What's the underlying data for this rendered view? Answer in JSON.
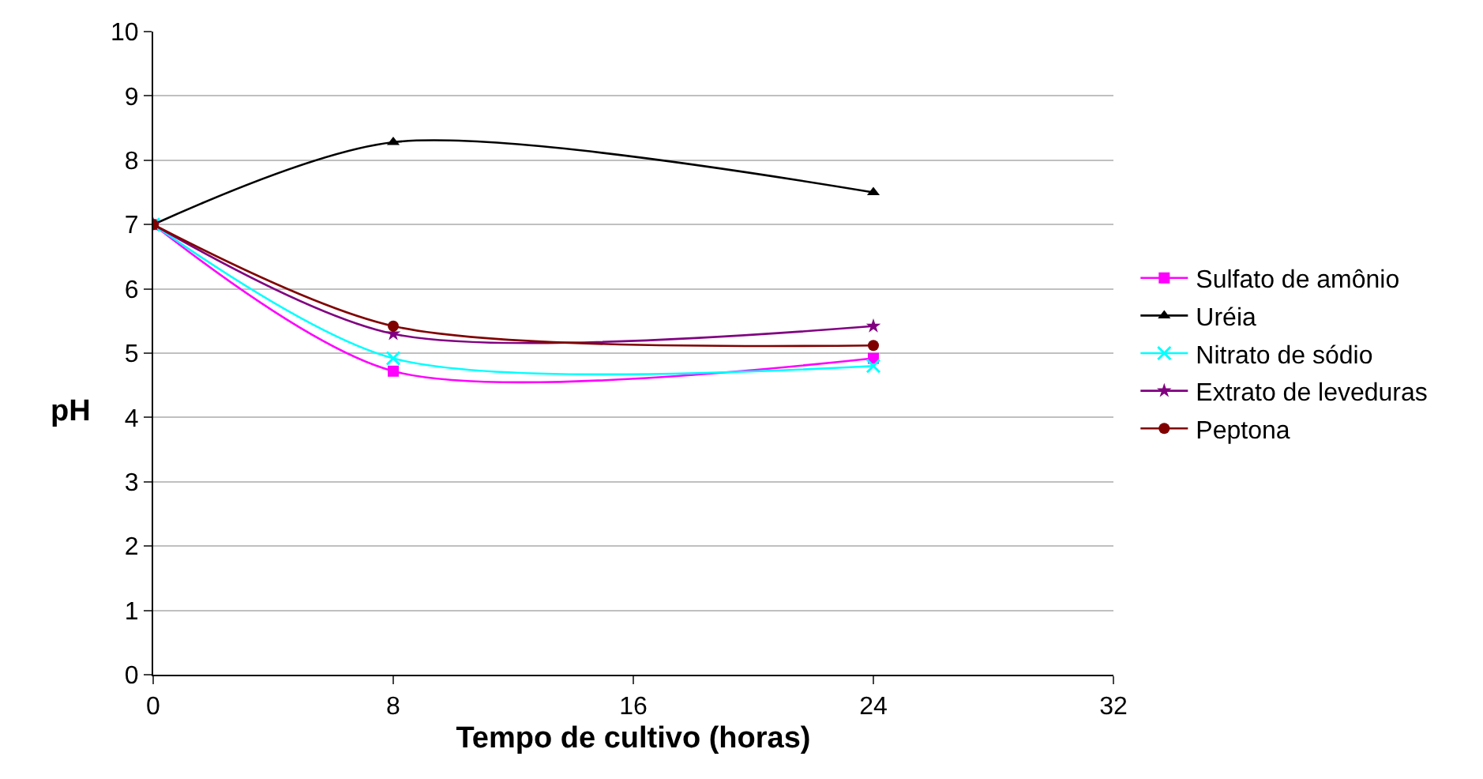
{
  "chart_data": {
    "type": "line",
    "xlabel": "Tempo de cultivo (horas)",
    "ylabel": "pH",
    "x": [
      0,
      8,
      24
    ],
    "series": [
      {
        "name": "Sulfato de amônio",
        "color": "#ff00ff",
        "marker": "square",
        "values": [
          7,
          4.72,
          4.92
        ]
      },
      {
        "name": "Uréia",
        "color": "#000000",
        "marker": "triangle",
        "values": [
          7,
          8.28,
          7.5
        ]
      },
      {
        "name": "Nitrato de sódio",
        "color": "#00ffff",
        "marker": "cross",
        "values": [
          7,
          4.92,
          4.8
        ]
      },
      {
        "name": "Extrato de leveduras",
        "color": "#800080",
        "marker": "star",
        "values": [
          7,
          5.3,
          5.42
        ]
      },
      {
        "name": "Peptona",
        "color": "#800000",
        "marker": "circle",
        "values": [
          7,
          5.42,
          5.12
        ]
      }
    ],
    "xlim": [
      0,
      32
    ],
    "xticks": [
      0,
      8,
      16,
      24,
      32
    ],
    "ylim": [
      0,
      10
    ],
    "yticks": [
      0,
      1,
      2,
      3,
      4,
      5,
      6,
      7,
      8,
      9,
      10
    ],
    "grid": "y",
    "legend": "right",
    "line_style": "solid"
  }
}
